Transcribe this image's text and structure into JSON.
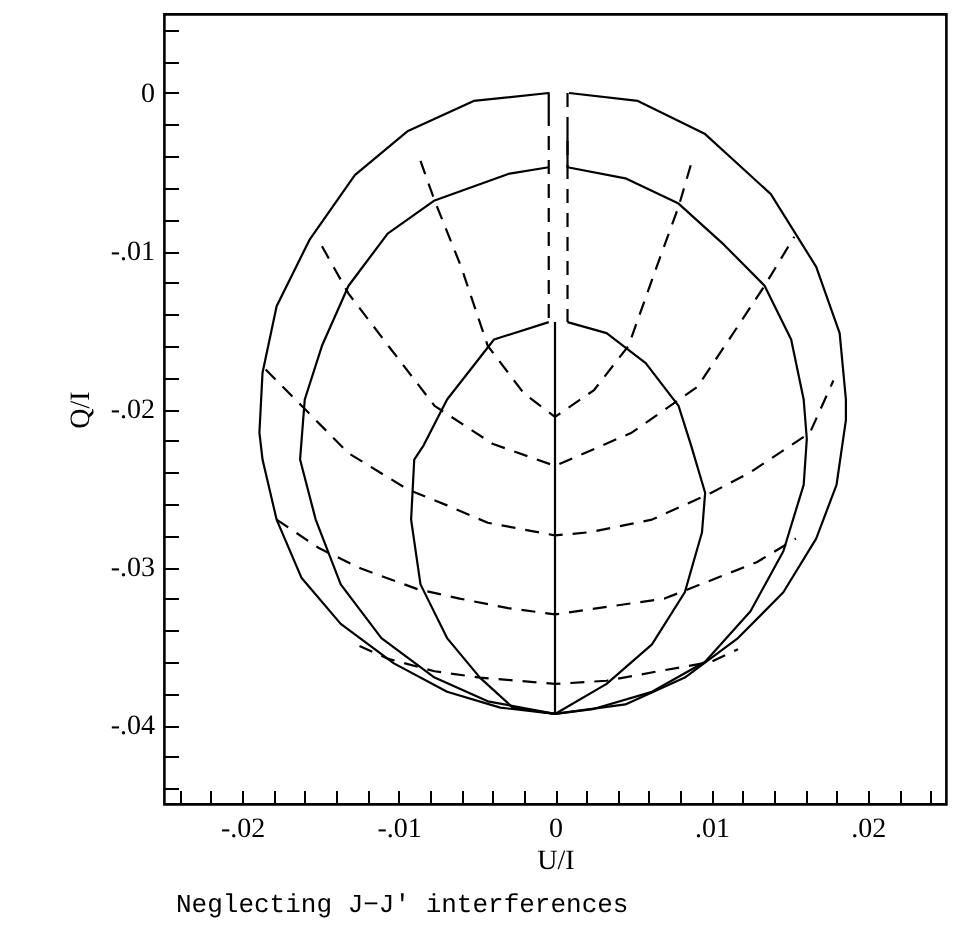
{
  "chart_data": {
    "type": "line",
    "xlabel": "U/I",
    "ylabel": "Q/I",
    "annotations": [
      "Neglecting J−J' interferences"
    ],
    "xlim": [
      -0.025,
      0.025
    ],
    "ylim": [
      -0.045,
      0.005
    ],
    "grid": false,
    "xticks": [
      {
        "value": -0.024,
        "label": null
      },
      {
        "value": -0.022,
        "label": null
      },
      {
        "value": -0.02,
        "label": "-.02"
      },
      {
        "value": -0.018,
        "label": null
      },
      {
        "value": -0.016,
        "label": null
      },
      {
        "value": -0.014,
        "label": null
      },
      {
        "value": -0.012,
        "label": null
      },
      {
        "value": -0.01,
        "label": "-.01"
      },
      {
        "value": -0.008,
        "label": null
      },
      {
        "value": -0.006,
        "label": null
      },
      {
        "value": -0.004,
        "label": null
      },
      {
        "value": -0.002,
        "label": null
      },
      0,
      {
        "value": 0.002,
        "label": null
      },
      {
        "value": 0.004,
        "label": null
      },
      {
        "value": 0.006,
        "label": null
      },
      {
        "value": 0.008,
        "label": null
      },
      {
        "value": 0.01,
        "label": ".01"
      },
      {
        "value": 0.012,
        "label": null
      },
      {
        "value": 0.014,
        "label": null
      },
      {
        "value": 0.016,
        "label": null
      },
      {
        "value": 0.018,
        "label": null
      },
      {
        "value": 0.02,
        "label": ".02"
      },
      {
        "value": 0.022,
        "label": null
      },
      {
        "value": 0.024,
        "label": null
      }
    ],
    "yticks": [
      {
        "value": 0.004,
        "label": null
      },
      {
        "value": 0.002,
        "label": null
      },
      0,
      {
        "value": -0.002,
        "label": null
      },
      {
        "value": -0.004,
        "label": null
      },
      {
        "value": -0.006,
        "label": null
      },
      {
        "value": -0.008,
        "label": null
      },
      {
        "value": -0.01,
        "label": "-.01"
      },
      {
        "value": -0.012,
        "label": null
      },
      {
        "value": -0.014,
        "label": null
      },
      {
        "value": -0.016,
        "label": null
      },
      {
        "value": -0.018,
        "label": null
      },
      {
        "value": -0.02,
        "label": "-.02"
      },
      {
        "value": -0.022,
        "label": null
      },
      {
        "value": -0.024,
        "label": null
      },
      {
        "value": -0.026,
        "label": null
      },
      {
        "value": -0.028,
        "label": null
      },
      {
        "value": -0.03,
        "label": "-.03"
      },
      {
        "value": -0.032,
        "label": null
      },
      {
        "value": -0.034,
        "label": null
      },
      {
        "value": -0.036,
        "label": null
      },
      {
        "value": -0.038,
        "label": null
      },
      {
        "value": -0.04,
        "label": "-.04"
      },
      {
        "value": -0.042,
        "label": null
      },
      {
        "value": -0.044,
        "label": null
      }
    ],
    "series": [
      {
        "color": "#000000",
        "line_style": "solid",
        "x": [
          -0.0004,
          -0.0004,
          -0.0052,
          -0.0094,
          -0.0128,
          -0.0157,
          -0.0178,
          -0.0187,
          -0.0189,
          -0.0187,
          -0.0178,
          -0.0162,
          -0.0137,
          -0.0103,
          -0.0069,
          -0.0035,
          0,
          0.0045,
          0.0083,
          0.0117,
          0.0146,
          0.0167,
          0.018,
          0.0186,
          0.0186,
          0.0182,
          0.0167,
          0.0138,
          0.0096,
          0.0053,
          0.0009
        ],
        "values": [
          -0.0012,
          0,
          -0.0005,
          -0.0024,
          -0.0052,
          -0.0093,
          -0.0135,
          -0.0177,
          -0.0215,
          -0.0232,
          -0.027,
          -0.0307,
          -0.0336,
          -0.0361,
          -0.0379,
          -0.0389,
          -0.0393,
          -0.0387,
          -0.037,
          -0.0345,
          -0.0316,
          -0.0282,
          -0.0248,
          -0.0207,
          -0.0194,
          -0.0152,
          -0.011,
          -0.0064,
          -0.0026,
          -0.0005,
          0
        ]
      },
      {
        "color": "#000000",
        "line_style": "solid",
        "x": [
          -0.0004,
          -0.0029,
          -0.0077,
          -0.0107,
          -0.0132,
          -0.0149,
          -0.016,
          -0.0163,
          -0.0153,
          -0.0137,
          -0.0111,
          -0.0077,
          -0.0043,
          0,
          0.0024,
          0.0062,
          0.0096,
          0.0125,
          0.0146,
          0.0159,
          0.0161,
          0.0159,
          0.0151,
          0.0134,
          0.0108,
          0.0079,
          0.0045,
          0.0008,
          0.0008
        ],
        "values": [
          -0.0047,
          -0.0051,
          -0.0068,
          -0.0089,
          -0.0122,
          -0.016,
          -0.0194,
          -0.0232,
          -0.027,
          -0.0311,
          -0.0345,
          -0.037,
          -0.0385,
          -0.0393,
          -0.039,
          -0.0379,
          -0.036,
          -0.0328,
          -0.029,
          -0.0248,
          -0.0219,
          -0.0194,
          -0.0156,
          -0.0122,
          -0.0096,
          -0.007,
          -0.0054,
          -0.0047,
          -0.0024
        ]
      },
      {
        "color": "#000000",
        "line_style": "solid",
        "x": [
          -0.0004,
          -0.0039,
          -0.0069,
          -0.0084,
          -0.009,
          -0.0092,
          -0.0086,
          -0.0069,
          -0.0048,
          -0.0027,
          0,
          0.0033,
          0.0062,
          0.0083,
          0.0094,
          0.0096,
          0.0087,
          0.0079,
          0.0058,
          0.0033,
          0.0008
        ],
        "values": [
          -0.0145,
          -0.0156,
          -0.0194,
          -0.0223,
          -0.0232,
          -0.027,
          -0.0311,
          -0.0345,
          -0.037,
          -0.0389,
          -0.0393,
          -0.0374,
          -0.0349,
          -0.0316,
          -0.0278,
          -0.0253,
          -0.0223,
          -0.0198,
          -0.0171,
          -0.0152,
          -0.0145
        ]
      },
      {
        "color": "#000000",
        "line_style": "solid",
        "x": [
          0,
          0
        ],
        "values": [
          -0.0145,
          -0.0393
        ]
      },
      {
        "color": "#000000",
        "line_style": "dashed",
        "x": [
          -0.0004,
          -0.0004
        ],
        "values": [
          -0.0012,
          -0.0145
        ]
      },
      {
        "color": "#000000",
        "line_style": "dashed",
        "x": [
          0.0008,
          0.0008
        ],
        "values": [
          0,
          -0.0145
        ]
      },
      {
        "color": "#000000",
        "line_style": "dashed",
        "x": [
          -0.0086,
          -0.0077,
          -0.006,
          -0.0043,
          -0.002,
          0,
          0.0025,
          0.0047,
          0.0065,
          0.0079,
          0.0087
        ],
        "values": [
          -0.0043,
          -0.0068,
          -0.011,
          -0.016,
          -0.019,
          -0.0205,
          -0.0188,
          -0.016,
          -0.011,
          -0.0072,
          -0.0045
        ]
      },
      {
        "color": "#000000",
        "line_style": "dashed",
        "x": [
          -0.0149,
          -0.0132,
          -0.0105,
          -0.0077,
          -0.004,
          0,
          0.0049,
          0.0091,
          0.0112,
          0.0134,
          0.0153
        ],
        "values": [
          -0.0097,
          -0.0127,
          -0.0162,
          -0.0198,
          -0.0222,
          -0.0236,
          -0.0215,
          -0.0186,
          -0.0155,
          -0.0122,
          -0.0091
        ]
      },
      {
        "color": "#000000",
        "line_style": "dashed",
        "x": [
          -0.0185,
          -0.0162,
          -0.0132,
          -0.0094,
          -0.0069,
          -0.0043,
          0,
          0.0022,
          0.0062,
          0.01,
          0.0125,
          0.0163,
          0.0178
        ],
        "values": [
          -0.0175,
          -0.0198,
          -0.0228,
          -0.0251,
          -0.0261,
          -0.0272,
          -0.028,
          -0.0278,
          -0.027,
          -0.0253,
          -0.024,
          -0.0215,
          -0.0182
        ]
      },
      {
        "color": "#000000",
        "line_style": "dashed",
        "x": [
          -0.0178,
          -0.0151,
          -0.0124,
          -0.0088,
          -0.0061,
          -0.003,
          0,
          0.007,
          0.0129,
          0.0154
        ],
        "values": [
          -0.027,
          -0.0288,
          -0.0301,
          -0.0314,
          -0.032,
          -0.0326,
          -0.033,
          -0.032,
          -0.0297,
          -0.0282
        ]
      },
      {
        "color": "#000000",
        "line_style": "dashed",
        "x": [
          -0.0125,
          -0.0107,
          -0.0077,
          -0.0048,
          0,
          0.0033,
          0.0066,
          0.01,
          0.0117
        ],
        "values": [
          -0.035,
          -0.0358,
          -0.0366,
          -0.037,
          -0.0374,
          -0.0372,
          -0.0366,
          -0.036,
          -0.0352
        ]
      }
    ]
  }
}
